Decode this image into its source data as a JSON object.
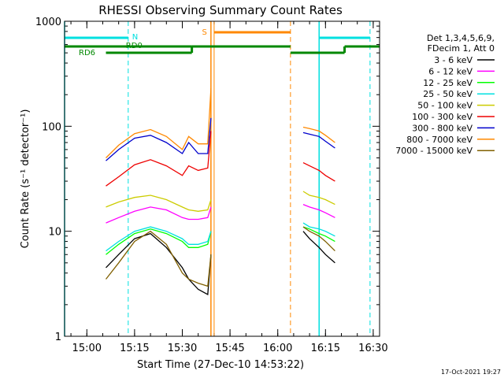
{
  "chart_data": {
    "type": "line",
    "title": "RHESSI Observing Summary Count Rates",
    "xlabel": "Start Time (27-Dec-10 14:53:22)",
    "ylabel": "Count Rate (s⁻¹ detector⁻¹)",
    "yscale": "log",
    "xlim": [
      "14:53",
      "16:32"
    ],
    "ylim": [
      1,
      1000
    ],
    "x_ticks": [
      "15:00",
      "15:15",
      "15:30",
      "15:45",
      "16:00",
      "16:15",
      "16:30"
    ],
    "y_ticks": [
      "1",
      "10",
      "100",
      "1000"
    ],
    "legend": {
      "placement": "right",
      "header": [
        "Det 1,3,4,5,6,9,",
        "FDecim 1, Att 0"
      ],
      "entries": [
        {
          "label": "3 - 6 keV",
          "color": "#000000"
        },
        {
          "label": "6 - 12 keV",
          "color": "#ff00ff"
        },
        {
          "label": "12 - 25 keV",
          "color": "#00ff00"
        },
        {
          "label": "25 - 50 keV",
          "color": "#00e0e0"
        },
        {
          "label": "50 - 100 keV",
          "color": "#cccc00"
        },
        {
          "label": "100 - 300 keV",
          "color": "#ee0000"
        },
        {
          "label": "300 - 800 keV",
          "color": "#0000cc"
        },
        {
          "label": "800 - 7000 keV",
          "color": "#ff8800"
        },
        {
          "label": "7000 - 15000 keV",
          "color": "#806000"
        }
      ]
    },
    "annotations": {
      "n_label": "N",
      "s_label": "S",
      "rd0_label": "RD0",
      "rd6_label": "RD6",
      "timestamp": "17-Oct-2021 19:27"
    },
    "segments": [
      [
        "15:06",
        "15:39"
      ],
      [
        "16:08",
        "16:18"
      ]
    ],
    "series": [
      {
        "name": "3 - 6 keV",
        "color": "#000000",
        "x": [
          "15:06",
          "15:10",
          "15:15",
          "15:20",
          "15:25",
          "15:30",
          "15:32",
          "15:35",
          "15:38",
          "15:39",
          "16:08",
          "16:10",
          "16:13",
          "16:15",
          "16:18"
        ],
        "y": [
          4.5,
          6,
          8.5,
          9.5,
          7,
          4.5,
          3.5,
          2.8,
          2.5,
          6,
          10,
          8.5,
          7,
          6,
          5
        ]
      },
      {
        "name": "6 - 12 keV",
        "color": "#ff00ff",
        "x": [
          "15:06",
          "15:10",
          "15:15",
          "15:20",
          "15:25",
          "15:30",
          "15:32",
          "15:35",
          "15:38",
          "15:39",
          "16:08",
          "16:10",
          "16:13",
          "16:15",
          "16:18"
        ],
        "y": [
          12,
          13.5,
          15.5,
          17,
          16,
          13.5,
          13,
          13,
          13.5,
          17,
          18,
          17,
          16,
          15,
          13.5
        ]
      },
      {
        "name": "12 - 25 keV",
        "color": "#00ff00",
        "x": [
          "15:06",
          "15:10",
          "15:15",
          "15:20",
          "15:25",
          "15:30",
          "15:32",
          "15:35",
          "15:38",
          "15:39",
          "16:08",
          "16:10",
          "16:13",
          "16:15",
          "16:18"
        ],
        "y": [
          6,
          7.5,
          9.5,
          10.5,
          9.5,
          8,
          7,
          7,
          7.5,
          10,
          11,
          10.5,
          9.5,
          9,
          8
        ]
      },
      {
        "name": "25 - 50 keV",
        "color": "#00e0e0",
        "x": [
          "15:06",
          "15:10",
          "15:15",
          "15:20",
          "15:25",
          "15:30",
          "15:32",
          "15:35",
          "15:38",
          "15:39",
          "16:08",
          "16:10",
          "16:13",
          "16:15",
          "16:18"
        ],
        "y": [
          6.5,
          8,
          10,
          11,
          10,
          8.5,
          7.5,
          7.5,
          8,
          10,
          12,
          11,
          10.5,
          10,
          9
        ]
      },
      {
        "name": "50 - 100 keV",
        "color": "#cccc00",
        "x": [
          "15:06",
          "15:10",
          "15:15",
          "15:20",
          "15:25",
          "15:30",
          "15:32",
          "15:35",
          "15:38",
          "15:39",
          "16:08",
          "16:10",
          "16:13",
          "16:15",
          "16:18"
        ],
        "y": [
          17,
          19,
          21,
          22,
          20,
          17,
          16,
          15.5,
          16,
          20,
          24,
          22,
          21,
          20,
          18
        ]
      },
      {
        "name": "100 - 300 keV",
        "color": "#ee0000",
        "x": [
          "15:06",
          "15:10",
          "15:15",
          "15:20",
          "15:25",
          "15:30",
          "15:32",
          "15:35",
          "15:38",
          "15:39",
          "16:08",
          "16:10",
          "16:13",
          "16:15",
          "16:18"
        ],
        "y": [
          27,
          33,
          43,
          48,
          42,
          34,
          42,
          38,
          40,
          90,
          45,
          42,
          38,
          34,
          30
        ]
      },
      {
        "name": "300 - 800 keV",
        "color": "#0000cc",
        "x": [
          "15:06",
          "15:10",
          "15:15",
          "15:20",
          "15:25",
          "15:30",
          "15:32",
          "15:35",
          "15:38",
          "15:39",
          "16:08",
          "16:10",
          "16:13",
          "16:15",
          "16:18"
        ],
        "y": [
          47,
          60,
          77,
          82,
          70,
          55,
          70,
          55,
          55,
          120,
          87,
          84,
          80,
          72,
          62
        ]
      },
      {
        "name": "800 - 7000 keV",
        "color": "#ff8800",
        "x": [
          "15:06",
          "15:10",
          "15:15",
          "15:20",
          "15:25",
          "15:30",
          "15:32",
          "15:35",
          "15:38",
          "15:39",
          "16:08",
          "16:10",
          "16:13",
          "16:15",
          "16:18"
        ],
        "y": [
          50,
          66,
          85,
          93,
          80,
          60,
          80,
          68,
          68,
          230,
          98,
          95,
          90,
          82,
          70
        ]
      },
      {
        "name": "7000 - 15000 keV",
        "color": "#806000",
        "x": [
          "15:06",
          "15:10",
          "15:15",
          "15:20",
          "15:25",
          "15:30",
          "15:32",
          "15:35",
          "15:38",
          "15:39",
          "16:08",
          "16:10",
          "16:13",
          "16:15",
          "16:18"
        ],
        "y": [
          3.5,
          5,
          8,
          10,
          7.5,
          4,
          3.5,
          3.2,
          3,
          6,
          11,
          10,
          9,
          8,
          6.5
        ]
      }
    ]
  }
}
